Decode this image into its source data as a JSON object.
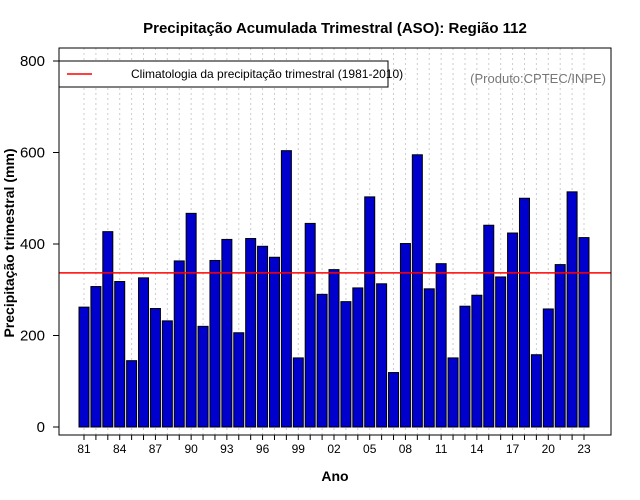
{
  "chart_data": {
    "type": "bar",
    "title": "Precipitação Acumulada Trimestral (ASO): Região 112",
    "xlabel": "Ano",
    "ylabel": "Precipitação trimestral (mm)",
    "ylim": [
      0,
      800
    ],
    "yticks": [
      "0",
      "200",
      "400",
      "600",
      "800"
    ],
    "credit": "(Produto:CPTEC/INPE)",
    "legend": {
      "label": "Climatologia da precipitação trimestral (1981-2010)",
      "color": "#ff0000",
      "placement": "top-left"
    },
    "bar_color": "#0000cd",
    "climatology": 337,
    "categories": [
      "81",
      "82",
      "83",
      "84",
      "85",
      "86",
      "87",
      "88",
      "89",
      "90",
      "91",
      "92",
      "93",
      "94",
      "95",
      "96",
      "97",
      "98",
      "99",
      "00",
      "01",
      "02",
      "03",
      "04",
      "05",
      "06",
      "07",
      "08",
      "09",
      "10",
      "11",
      "12",
      "13",
      "14",
      "15",
      "16",
      "17",
      "18",
      "19",
      "20",
      "21",
      "22",
      "23"
    ],
    "values": [
      262,
      307,
      427,
      318,
      145,
      326,
      259,
      232,
      363,
      467,
      220,
      364,
      410,
      206,
      412,
      395,
      371,
      604,
      151,
      445,
      290,
      344,
      274,
      304,
      503,
      313,
      119,
      401,
      595,
      302,
      357,
      151,
      264,
      288,
      441,
      328,
      424,
      500,
      158,
      258,
      355,
      514,
      414
    ],
    "x_tick_labels": [
      "81",
      "84",
      "87",
      "90",
      "93",
      "96",
      "99",
      "02",
      "05",
      "08",
      "11",
      "14",
      "17",
      "20",
      "23"
    ],
    "grid": true
  }
}
